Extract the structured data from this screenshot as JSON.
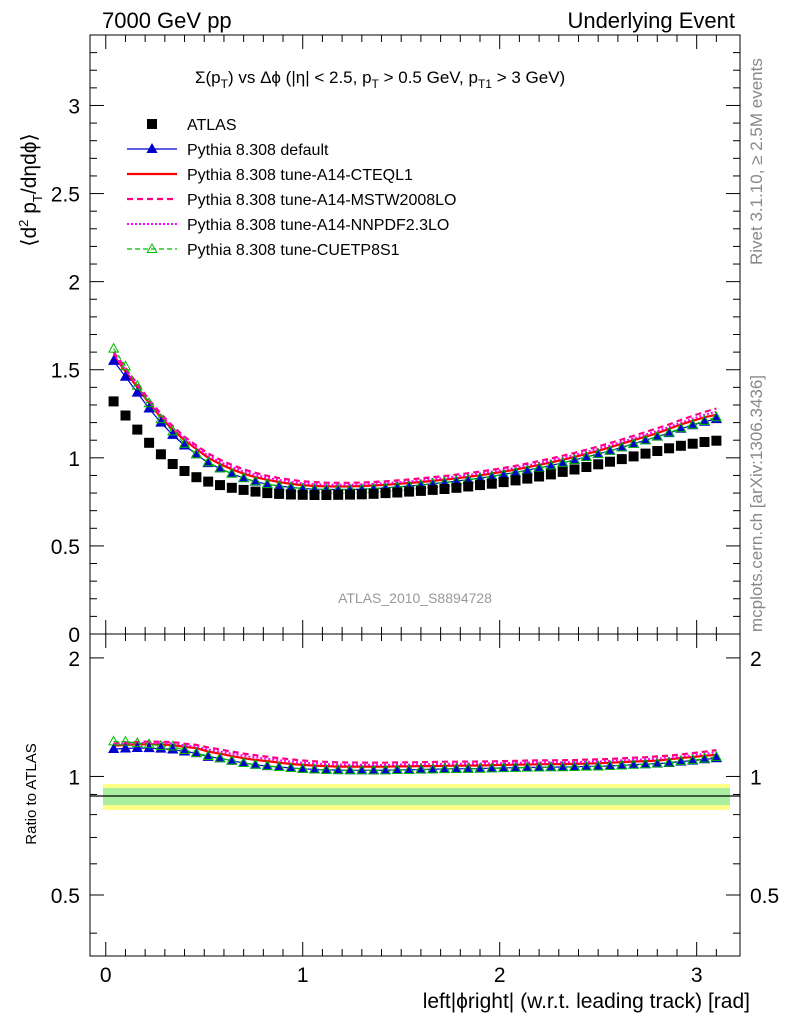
{
  "header": {
    "left": "7000 GeV pp",
    "right": "Underlying Event"
  },
  "side_labels": {
    "rivet": "Rivet 3.1.10, ≥ 2.5M events",
    "mcplots": "mcplots.cern.ch [arXiv:1306.3436]"
  },
  "watermark": "ATLAS_2010_S8894728",
  "colors": {
    "atlas": "#000000",
    "default": "#0000cc",
    "cteql1": "#ff0000",
    "mstw": "#ff0080",
    "nnpdf": "#ff00ff",
    "cuetp8s1": "#00bb00",
    "band_inner": "#a8f0a0",
    "band_outer": "#ffff88"
  },
  "chart_data": {
    "type": "line",
    "title": "Σ(p_T) vs Δϕ (|η| < 2.5, p_T > 0.5 GeV, p_T1 > 3 GeV)",
    "xlabel": "left|ϕright| (w.r.t. leading track) [rad]",
    "ylabel": "⟨d² p_T/dηdϕ⟩",
    "ratio_ylabel": "Ratio to ATLAS",
    "xlim": [
      -0.08,
      3.22
    ],
    "ylim": [
      0,
      3.4
    ],
    "ratio_ylim": [
      0.35,
      2.3
    ],
    "x_ticks": [
      "0",
      "1",
      "2",
      "3"
    ],
    "y_ticks": [
      "0",
      "0.5",
      "1",
      "1.5",
      "2",
      "2.5",
      "3"
    ],
    "ratio_ticks": [
      "0.5",
      "1",
      "2"
    ],
    "legend_position": "top-left",
    "x": [
      0.04,
      0.1,
      0.16,
      0.22,
      0.28,
      0.34,
      0.4,
      0.46,
      0.52,
      0.58,
      0.64,
      0.7,
      0.76,
      0.82,
      0.88,
      0.94,
      1.0,
      1.06,
      1.12,
      1.18,
      1.24,
      1.3,
      1.36,
      1.42,
      1.48,
      1.54,
      1.6,
      1.66,
      1.72,
      1.78,
      1.84,
      1.9,
      1.96,
      2.02,
      2.08,
      2.14,
      2.2,
      2.26,
      2.32,
      2.38,
      2.44,
      2.5,
      2.56,
      2.62,
      2.68,
      2.74,
      2.8,
      2.86,
      2.92,
      2.98,
      3.04,
      3.1
    ],
    "series": [
      {
        "name": "ATLAS",
        "values": [
          1.32,
          1.24,
          1.16,
          1.085,
          1.02,
          0.965,
          0.925,
          0.89,
          0.865,
          0.845,
          0.83,
          0.818,
          0.808,
          0.8,
          0.795,
          0.792,
          0.79,
          0.789,
          0.789,
          0.79,
          0.791,
          0.793,
          0.796,
          0.8,
          0.803,
          0.808,
          0.812,
          0.818,
          0.823,
          0.83,
          0.837,
          0.845,
          0.853,
          0.862,
          0.872,
          0.882,
          0.894,
          0.906,
          0.92,
          0.934,
          0.948,
          0.963,
          0.978,
          0.993,
          1.008,
          1.024,
          1.039,
          1.054,
          1.068,
          1.08,
          1.09,
          1.097
        ]
      },
      {
        "name": "Pythia 8.308 default",
        "values": [
          1.55,
          1.46,
          1.37,
          1.28,
          1.2,
          1.13,
          1.07,
          1.02,
          0.97,
          0.94,
          0.91,
          0.885,
          0.865,
          0.85,
          0.84,
          0.832,
          0.826,
          0.822,
          0.82,
          0.82,
          0.82,
          0.822,
          0.825,
          0.83,
          0.835,
          0.84,
          0.846,
          0.853,
          0.86,
          0.868,
          0.876,
          0.885,
          0.895,
          0.906,
          0.918,
          0.93,
          0.943,
          0.957,
          0.972,
          0.988,
          1.005,
          1.022,
          1.04,
          1.06,
          1.08,
          1.1,
          1.12,
          1.14,
          1.165,
          1.185,
          1.205,
          1.22
        ]
      },
      {
        "name": "Pythia 8.308 tune-A14-CTEQL1",
        "values": [
          1.58,
          1.49,
          1.4,
          1.31,
          1.23,
          1.16,
          1.1,
          1.05,
          1.0,
          0.965,
          0.935,
          0.91,
          0.89,
          0.875,
          0.862,
          0.852,
          0.845,
          0.84,
          0.838,
          0.837,
          0.838,
          0.84,
          0.843,
          0.847,
          0.852,
          0.857,
          0.863,
          0.869,
          0.876,
          0.884,
          0.892,
          0.901,
          0.911,
          0.922,
          0.934,
          0.946,
          0.96,
          0.974,
          0.989,
          1.005,
          1.022,
          1.04,
          1.06,
          1.08,
          1.1,
          1.12,
          1.14,
          1.165,
          1.19,
          1.21,
          1.23,
          1.245
        ]
      },
      {
        "name": "Pythia 8.308 tune-A14-MSTW2008LO",
        "values": [
          1.6,
          1.51,
          1.42,
          1.33,
          1.25,
          1.18,
          1.12,
          1.07,
          1.025,
          0.99,
          0.96,
          0.935,
          0.915,
          0.898,
          0.885,
          0.875,
          0.867,
          0.862,
          0.859,
          0.858,
          0.858,
          0.86,
          0.863,
          0.867,
          0.872,
          0.877,
          0.883,
          0.89,
          0.897,
          0.905,
          0.913,
          0.922,
          0.932,
          0.943,
          0.955,
          0.968,
          0.982,
          0.996,
          1.012,
          1.028,
          1.046,
          1.064,
          1.084,
          1.104,
          1.125,
          1.146,
          1.168,
          1.19,
          1.215,
          1.238,
          1.26,
          1.28
        ]
      },
      {
        "name": "Pythia 8.308 tune-A14-NNPDF2.3LO",
        "values": [
          1.59,
          1.5,
          1.41,
          1.32,
          1.24,
          1.17,
          1.11,
          1.06,
          1.012,
          0.978,
          0.948,
          0.923,
          0.903,
          0.887,
          0.874,
          0.864,
          0.856,
          0.851,
          0.848,
          0.847,
          0.847,
          0.849,
          0.852,
          0.856,
          0.861,
          0.866,
          0.872,
          0.879,
          0.886,
          0.894,
          0.902,
          0.911,
          0.921,
          0.932,
          0.944,
          0.957,
          0.97,
          0.985,
          1.0,
          1.016,
          1.033,
          1.051,
          1.071,
          1.091,
          1.111,
          1.132,
          1.153,
          1.175,
          1.2,
          1.222,
          1.244,
          1.262
        ]
      },
      {
        "name": "Pythia 8.308 tune-CUETP8S1",
        "values": [
          1.62,
          1.52,
          1.41,
          1.31,
          1.22,
          1.15,
          1.08,
          1.02,
          0.975,
          0.94,
          0.91,
          0.885,
          0.866,
          0.851,
          0.84,
          0.832,
          0.826,
          0.822,
          0.82,
          0.82,
          0.82,
          0.822,
          0.825,
          0.829,
          0.834,
          0.839,
          0.845,
          0.852,
          0.859,
          0.867,
          0.875,
          0.884,
          0.894,
          0.905,
          0.917,
          0.929,
          0.942,
          0.956,
          0.971,
          0.987,
          1.004,
          1.021,
          1.04,
          1.059,
          1.079,
          1.1,
          1.121,
          1.143,
          1.168,
          1.188,
          1.21,
          1.23
        ]
      }
    ]
  }
}
